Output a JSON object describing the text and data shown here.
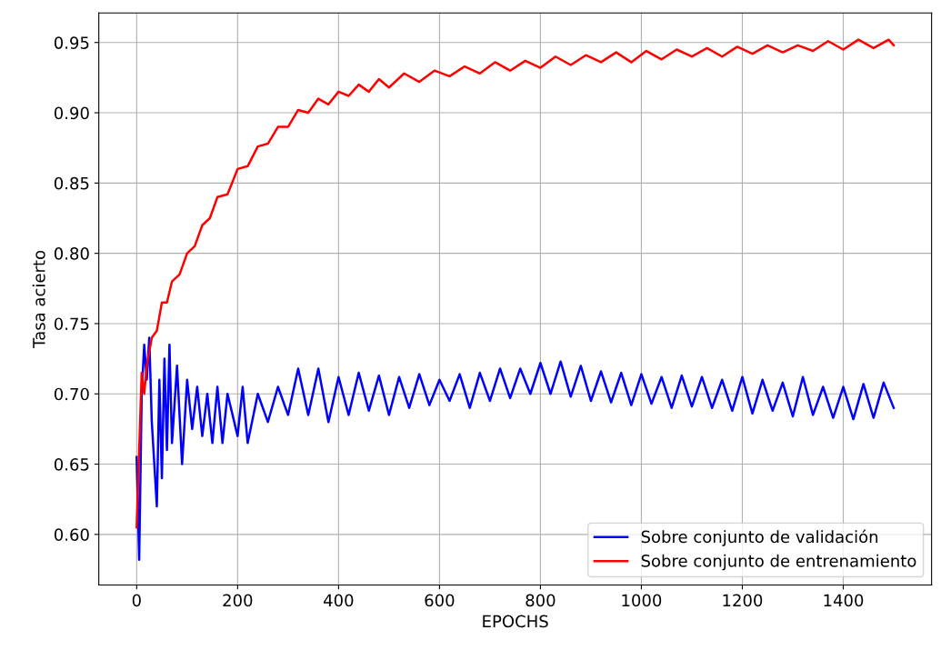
{
  "chart_data": {
    "type": "line",
    "xlabel": "EPOCHS",
    "ylabel": "Tasa acierto",
    "xlim": [
      -75,
      1575
    ],
    "xticks": [
      0,
      200,
      400,
      600,
      800,
      1000,
      1200,
      1400
    ],
    "ylim": [
      0.564,
      0.971
    ],
    "yticks": [
      {
        "value": 0.6,
        "label": "0.60"
      },
      {
        "value": 0.65,
        "label": "0.65"
      },
      {
        "value": 0.7,
        "label": "0.70"
      },
      {
        "value": 0.75,
        "label": "0.75"
      },
      {
        "value": 0.8,
        "label": "0.80"
      },
      {
        "value": 0.85,
        "label": "0.85"
      },
      {
        "value": 0.9,
        "label": "0.90"
      },
      {
        "value": 0.95,
        "label": "0.95"
      }
    ],
    "grid": true,
    "legend": "bottom right",
    "marker": "none",
    "line_style": "solid",
    "series": [
      {
        "name": "Sobre conjunto de validación",
        "color": "#0000ff",
        "x": [
          0,
          5,
          10,
          15,
          20,
          25,
          30,
          35,
          40,
          45,
          50,
          55,
          60,
          65,
          70,
          80,
          90,
          100,
          110,
          120,
          130,
          140,
          150,
          160,
          170,
          180,
          200,
          210,
          220,
          240,
          260,
          280,
          300,
          320,
          340,
          360,
          380,
          400,
          420,
          440,
          460,
          480,
          500,
          520,
          540,
          560,
          580,
          600,
          620,
          640,
          660,
          680,
          700,
          720,
          740,
          760,
          780,
          800,
          820,
          840,
          860,
          880,
          900,
          920,
          940,
          960,
          980,
          1000,
          1020,
          1040,
          1060,
          1080,
          1100,
          1120,
          1140,
          1160,
          1180,
          1200,
          1220,
          1240,
          1260,
          1280,
          1300,
          1320,
          1340,
          1360,
          1380,
          1400,
          1420,
          1440,
          1460,
          1480,
          1500
        ],
        "values": [
          0.655,
          0.582,
          0.7,
          0.735,
          0.71,
          0.74,
          0.68,
          0.65,
          0.62,
          0.71,
          0.64,
          0.725,
          0.66,
          0.735,
          0.665,
          0.72,
          0.65,
          0.71,
          0.675,
          0.705,
          0.67,
          0.7,
          0.665,
          0.705,
          0.665,
          0.7,
          0.67,
          0.705,
          0.665,
          0.7,
          0.68,
          0.705,
          0.685,
          0.718,
          0.685,
          0.718,
          0.68,
          0.712,
          0.685,
          0.715,
          0.688,
          0.713,
          0.685,
          0.712,
          0.69,
          0.714,
          0.692,
          0.71,
          0.695,
          0.714,
          0.69,
          0.715,
          0.695,
          0.718,
          0.697,
          0.718,
          0.7,
          0.722,
          0.7,
          0.723,
          0.698,
          0.72,
          0.695,
          0.716,
          0.694,
          0.715,
          0.692,
          0.714,
          0.693,
          0.712,
          0.69,
          0.713,
          0.691,
          0.712,
          0.69,
          0.71,
          0.688,
          0.712,
          0.686,
          0.71,
          0.688,
          0.708,
          0.684,
          0.712,
          0.685,
          0.705,
          0.683,
          0.705,
          0.682,
          0.707,
          0.683,
          0.708,
          0.69
        ]
      },
      {
        "name": "Sobre conjunto de entrenamiento",
        "color": "#ff0000",
        "x": [
          0,
          5,
          10,
          15,
          20,
          30,
          40,
          50,
          60,
          70,
          85,
          100,
          115,
          130,
          145,
          160,
          180,
          200,
          220,
          240,
          260,
          280,
          300,
          320,
          340,
          360,
          380,
          400,
          420,
          440,
          460,
          480,
          500,
          530,
          560,
          590,
          620,
          650,
          680,
          710,
          740,
          770,
          800,
          830,
          860,
          890,
          920,
          950,
          980,
          1010,
          1040,
          1070,
          1100,
          1130,
          1160,
          1190,
          1220,
          1250,
          1280,
          1310,
          1340,
          1370,
          1400,
          1430,
          1460,
          1490,
          1500
        ],
        "values": [
          0.605,
          0.66,
          0.715,
          0.7,
          0.72,
          0.74,
          0.745,
          0.765,
          0.765,
          0.78,
          0.785,
          0.8,
          0.805,
          0.82,
          0.825,
          0.84,
          0.842,
          0.86,
          0.862,
          0.876,
          0.878,
          0.89,
          0.89,
          0.902,
          0.9,
          0.91,
          0.906,
          0.915,
          0.912,
          0.92,
          0.915,
          0.924,
          0.918,
          0.928,
          0.922,
          0.93,
          0.926,
          0.933,
          0.928,
          0.936,
          0.93,
          0.937,
          0.932,
          0.94,
          0.934,
          0.941,
          0.936,
          0.943,
          0.936,
          0.944,
          0.938,
          0.945,
          0.94,
          0.946,
          0.94,
          0.947,
          0.942,
          0.948,
          0.943,
          0.948,
          0.944,
          0.951,
          0.945,
          0.952,
          0.946,
          0.952,
          0.948
        ]
      }
    ]
  }
}
